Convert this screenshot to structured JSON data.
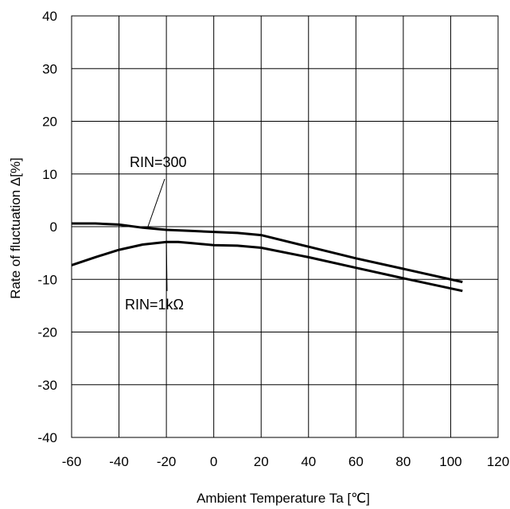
{
  "chart_data": {
    "type": "line",
    "title": "",
    "xlabel": "Ambient Temperature Ta [℃]",
    "ylabel": "Rate of fluctuation Δ[%]",
    "xlim": [
      -60,
      120
    ],
    "ylim": [
      -40,
      40
    ],
    "xticks": [
      -60,
      -40,
      -20,
      0,
      20,
      40,
      60,
      80,
      100,
      120
    ],
    "yticks": [
      -40,
      -30,
      -20,
      -10,
      0,
      10,
      20,
      30,
      40
    ],
    "xtick_labels": [
      "-60",
      "-40",
      "-20",
      "0",
      "20",
      "40",
      "60",
      "80",
      "100",
      "120"
    ],
    "ytick_labels": [
      "-40",
      "-30",
      "-20",
      "-10",
      "0",
      "10",
      "20",
      "30",
      "40"
    ],
    "grid": true,
    "series": [
      {
        "name": "RIN=300",
        "x": [
          -60,
          -50,
          -40,
          -30,
          -20,
          -10,
          0,
          10,
          20,
          40,
          60,
          80,
          105
        ],
        "y": [
          0.6,
          0.6,
          0.4,
          -0.2,
          -0.6,
          -0.8,
          -1.0,
          -1.2,
          -1.6,
          -3.8,
          -6.0,
          -8.0,
          -10.5
        ]
      },
      {
        "name": "RIN=1kΩ",
        "x": [
          -60,
          -50,
          -40,
          -30,
          -20,
          -15,
          -10,
          0,
          10,
          20,
          40,
          60,
          80,
          105
        ],
        "y": [
          -7.3,
          -5.8,
          -4.4,
          -3.4,
          -2.9,
          -2.9,
          -3.1,
          -3.5,
          -3.6,
          -4.0,
          -5.8,
          -7.8,
          -9.8,
          -12.2
        ]
      }
    ],
    "annotations": [
      {
        "text": "RIN=300",
        "series": 0
      },
      {
        "text": "RIN=1kΩ",
        "series": 1
      }
    ]
  }
}
